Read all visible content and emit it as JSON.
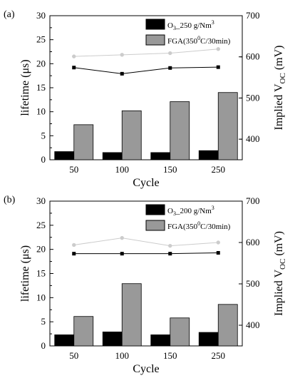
{
  "chart_data": [
    {
      "type": "bar",
      "panel_label": "(a)",
      "categories": [
        "50",
        "100",
        "150",
        "250"
      ],
      "xlabel": "Cycle",
      "ylabel": "lifetime (μs)",
      "ylabel_right": "Implied V",
      "ylabel_right_sub": "OC",
      "ylabel_right_unit": " (mV)",
      "ylim": [
        0,
        30
      ],
      "yticks": [
        "0",
        "5",
        "10",
        "15",
        "20",
        "25",
        "30"
      ],
      "ylim_right": [
        350,
        700
      ],
      "yticks_right": [
        "400",
        "500",
        "600",
        "700"
      ],
      "legend": {
        "o3": {
          "prefix": "O",
          "sub": "3",
          "text": "_250 g/Nm",
          "sup": "3"
        },
        "fga": {
          "text": "FGA(350",
          "sup": "0",
          "text2": "C/30min)"
        }
      },
      "series": [
        {
          "values": [
            1.7,
            1.5,
            1.5,
            1.9
          ],
          "color": "#000000"
        },
        {
          "values": [
            7.3,
            10.2,
            12.1,
            14.0
          ],
          "color": "#999999"
        }
      ],
      "voc_series": [
        {
          "values": [
            574,
            559,
            573,
            575
          ],
          "color": "#000000",
          "marker": "square"
        },
        {
          "values": [
            601,
            605,
            609,
            619
          ],
          "color": "#cccccc",
          "marker": "circle"
        }
      ]
    },
    {
      "type": "bar",
      "panel_label": "(b)",
      "categories": [
        "50",
        "100",
        "150",
        "250"
      ],
      "xlabel": "Cycle",
      "ylabel": "lifetime (μs)",
      "ylabel_right": "Implied V",
      "ylabel_right_sub": "OC",
      "ylabel_right_unit": " (mV)",
      "ylim": [
        0,
        30
      ],
      "yticks": [
        "0",
        "5",
        "10",
        "15",
        "20",
        "25",
        "30"
      ],
      "ylim_right": [
        350,
        700
      ],
      "yticks_right": [
        "400",
        "500",
        "600",
        "700"
      ],
      "legend": {
        "o3": {
          "prefix": "O",
          "sub": "3",
          "text": "_200 g/Nm",
          "sup": "3"
        },
        "fga": {
          "text": "FGA(350",
          "sup": "0",
          "text2": "C/30min)"
        }
      },
      "series": [
        {
          "values": [
            2.3,
            2.9,
            2.3,
            2.8
          ],
          "color": "#000000"
        },
        {
          "values": [
            6.1,
            12.9,
            5.8,
            8.6
          ],
          "color": "#999999"
        }
      ],
      "voc_series": [
        {
          "values": [
            573,
            573,
            573,
            575
          ],
          "color": "#000000",
          "marker": "square"
        },
        {
          "values": [
            594,
            611,
            592,
            600
          ],
          "color": "#cccccc",
          "marker": "circle"
        }
      ]
    }
  ]
}
